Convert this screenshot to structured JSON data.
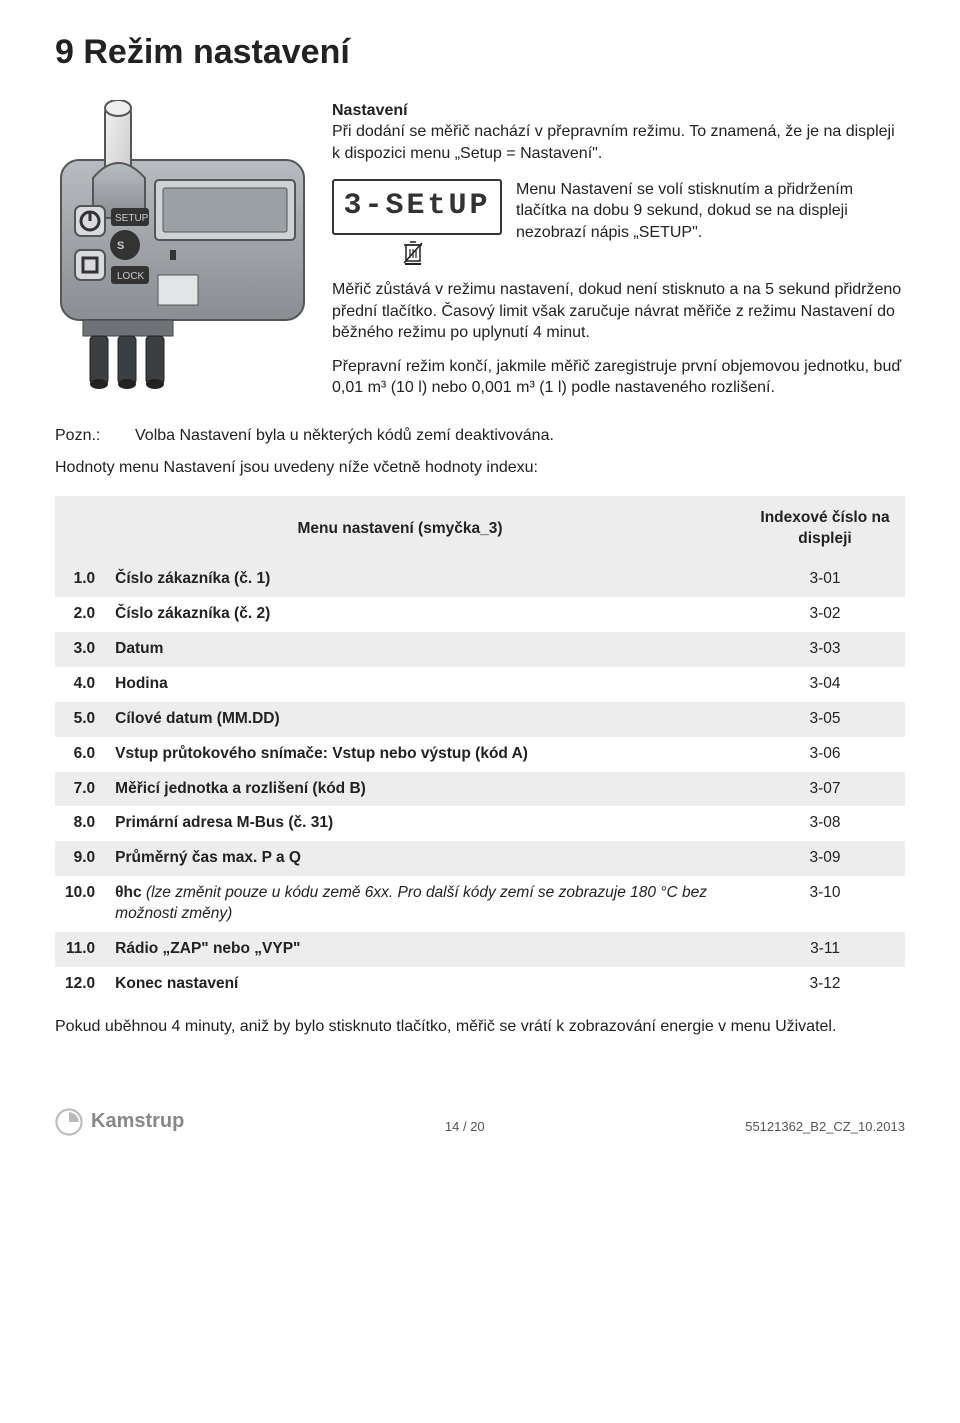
{
  "heading": "9   Režim nastavení",
  "intro": {
    "title": "Nastavení",
    "p1": "Při dodání se měřič nachází v přepravním režimu. To znamená, že je na displeji k dispozici menu „Setup = Nastavení\".",
    "lcd": "3-SEtUP",
    "p2": "Menu Nastavení se volí stisknutím a přidržením tlačítka na dobu 9 sekund, dokud se na displeji nezobrazí nápis „SETUP\".",
    "p3": "Měřič zůstává v režimu nastavení, dokud není stisknuto a na 5 sekund přidrženo přední tlačítko. Časový limit však zaručuje návrat měřiče z režimu Nastavení do běžného režimu po uplynutí 4 minut.",
    "p4": "Přepravní režim končí, jakmile měřič zaregistruje první objemovou jednotku, buď 0,01 m³ (10 l) nebo 0,001 m³ (1 l) podle nastaveného rozlišení."
  },
  "note": {
    "label": "Pozn.:",
    "text": "Volba Nastavení byla u některých kódů zemí deaktivována."
  },
  "after_note": "Hodnoty menu Nastavení jsou uvedeny níže včetně hodnoty indexu:",
  "table": {
    "header_menu": "Menu nastavení (smyčka_3)",
    "header_idx": "Indexové číslo na displeji",
    "rows": [
      {
        "n": "1.0",
        "label_bold": "Číslo zákazníka (č. 1)",
        "idx": "3-01"
      },
      {
        "n": "2.0",
        "label_bold": "Číslo zákazníka (č. 2)",
        "idx": "3-02"
      },
      {
        "n": "3.0",
        "label_bold": "Datum",
        "idx": "3-03"
      },
      {
        "n": "4.0",
        "label_bold": "Hodina",
        "idx": "3-04"
      },
      {
        "n": "5.0",
        "label_bold": "Cílové datum (MM.DD)",
        "idx": "3-05"
      },
      {
        "n": "6.0",
        "label_bold": "Vstup průtokového snímače: Vstup nebo výstup (kód A)",
        "idx": "3-06"
      },
      {
        "n": "7.0",
        "label_bold": "Měřicí jednotka a rozlišení (kód B)",
        "idx": "3-07"
      },
      {
        "n": "8.0",
        "label_bold": "Primární adresa M-Bus (č. 31)",
        "idx": "3-08"
      },
      {
        "n": "9.0",
        "label_bold": "Průměrný čas max. P a Q",
        "idx": "3-09"
      },
      {
        "n": "10.0",
        "label_bold": "θhc",
        "label_italic": " (lze změnit pouze u kódu země 6xx. Pro další kódy zemí se zobrazuje 180 °C bez možnosti změny)",
        "idx": "3-10"
      },
      {
        "n": "11.0",
        "label_bold": "Rádio „ZAP\" nebo „VYP\"",
        "idx": "3-11"
      },
      {
        "n": "12.0",
        "label_bold": "Konec nastavení",
        "idx": "3-12"
      }
    ]
  },
  "post_table": "Pokud uběhnou 4 minuty, aniž by bylo stisknuto tlačítko, měřič se vrátí k zobrazování energie v menu Uživatel.",
  "footer": {
    "brand": "Kamstrup",
    "page": "14 / 20",
    "doc": "55121362_B2_CZ_10.2013"
  },
  "colors": {
    "shade": "#ededed",
    "text": "#222222",
    "footer": "#555555"
  }
}
